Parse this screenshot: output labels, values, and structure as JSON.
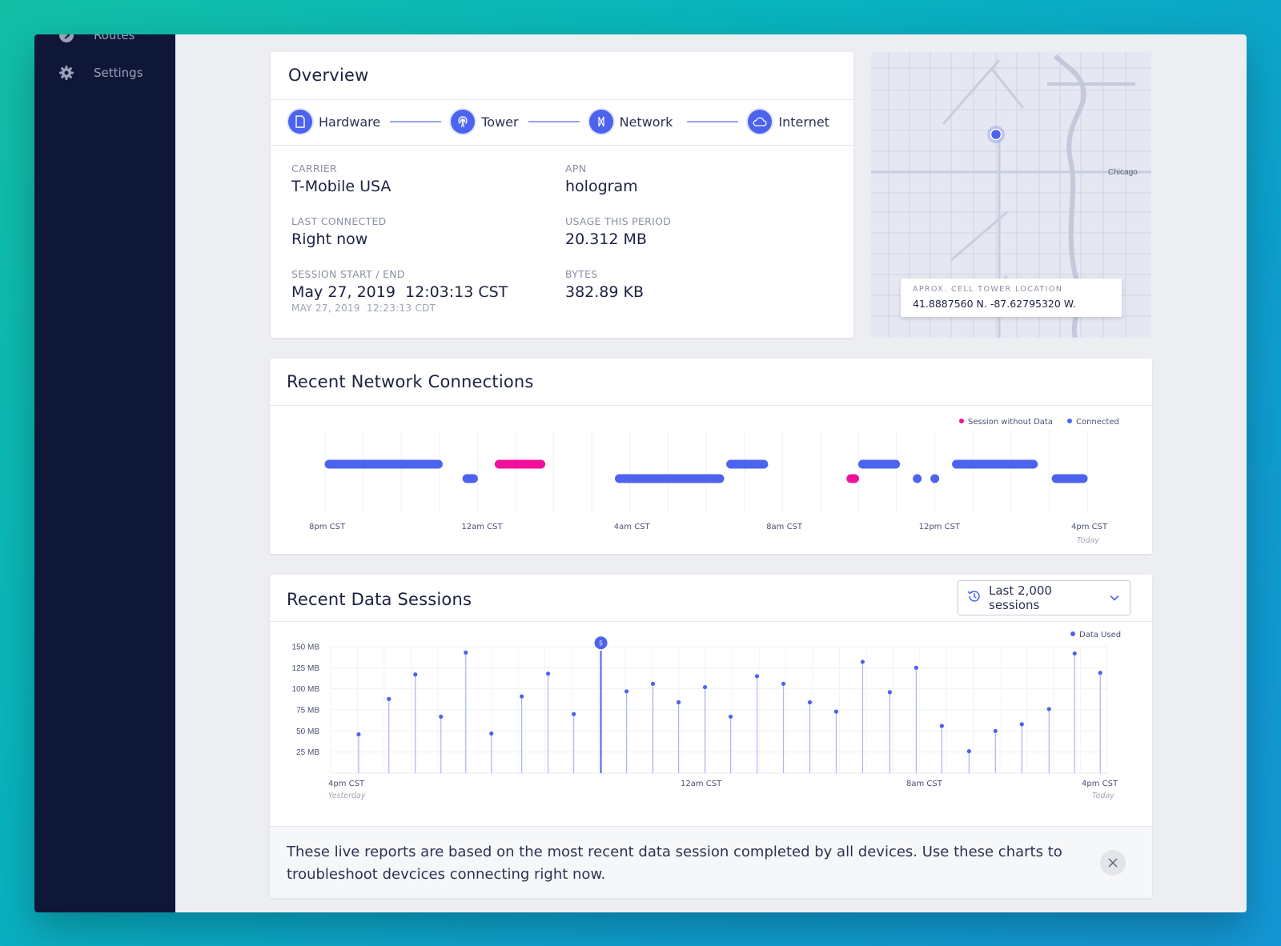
{
  "sidebar": {
    "items": [
      {
        "label": "Routes",
        "icon": "routes-icon"
      },
      {
        "label": "Settings",
        "icon": "gear-icon"
      }
    ]
  },
  "overview": {
    "title": "Overview",
    "steps": [
      {
        "label": "Hardware",
        "icon": "sim-card-icon"
      },
      {
        "label": "Tower",
        "icon": "tower-icon"
      },
      {
        "label": "Network",
        "icon": "network-icon"
      },
      {
        "label": "Internet",
        "icon": "cloud-icon"
      }
    ],
    "fields": {
      "carrier": {
        "label": "CARRIER",
        "value": "T-Mobile USA"
      },
      "apn": {
        "label": "APN",
        "value": "hologram"
      },
      "last_connected": {
        "label": "LAST CONNECTED",
        "value": "Right now"
      },
      "usage": {
        "label": "USAGE THIS PERIOD",
        "value": "20.312 MB"
      },
      "session": {
        "label": "SESSION START / END",
        "value": "May 27, 2019  12:03:13 CST",
        "sub": "MAY 27, 2019  12:23:13 CDT"
      },
      "bytes": {
        "label": "BYTES",
        "value": "382.89 KB"
      }
    }
  },
  "map": {
    "city_label": "Chicago",
    "tooltip_label": "APROX. CELL TOWER LOCATION",
    "tooltip_value": "41.8887560 N. -87.62795320 W."
  },
  "connections": {
    "title": "Recent Network Connections",
    "legend": {
      "session_without_data": "Session without Data",
      "connected": "Connected"
    },
    "x_labels": [
      "8pm CST",
      "12am CST",
      "4am CST",
      "8am CST",
      "12pm CST",
      "4pm CST"
    ],
    "x_sub": "Today",
    "colors": {
      "connected": "#4c63ee",
      "no_data": "#f0109c"
    }
  },
  "sessions": {
    "title": "Recent Data Sessions",
    "dropdown_label": "Last 2,000 sessions",
    "legend": "Data Used",
    "highlight_badge": "5",
    "x_labels": [
      "4pm CST",
      "12am CST",
      "8am CST",
      "4pm CST"
    ],
    "x_sub_left": "Yesterday",
    "x_sub_right": "Today",
    "info_text": "These live reports are based on the most recent data session completed by all devices. Use these charts to troubleshoot devcices connecting right now."
  },
  "chart_data": [
    {
      "type": "timeline",
      "title": "Recent Network Connections",
      "x_range": [
        "8pm CST",
        "4pm CST"
      ],
      "rows": 2,
      "segments": [
        {
          "start_h": 0.0,
          "end_h": 4.0,
          "row": 0,
          "status": "Connected"
        },
        {
          "start_h": 4.7,
          "end_h": 5.2,
          "row": 1,
          "status": "Connected"
        },
        {
          "start_h": 5.8,
          "end_h": 7.5,
          "row": 0,
          "status": "Session without Data"
        },
        {
          "start_h": 9.9,
          "end_h": 13.6,
          "row": 1,
          "status": "Connected"
        },
        {
          "start_h": 13.7,
          "end_h": 15.1,
          "row": 0,
          "status": "Connected"
        },
        {
          "start_h": 17.8,
          "end_h": 18.2,
          "row": 1,
          "status": "Session without Data"
        },
        {
          "start_h": 18.2,
          "end_h": 19.6,
          "row": 0,
          "status": "Connected"
        },
        {
          "start_h": 20.1,
          "end_h": 20.3,
          "row": 1,
          "status": "Connected"
        },
        {
          "start_h": 20.7,
          "end_h": 20.9,
          "row": 1,
          "status": "Connected"
        },
        {
          "start_h": 21.4,
          "end_h": 24.3,
          "row": 0,
          "status": "Connected"
        },
        {
          "start_h": 24.8,
          "end_h": 26.0,
          "row": 1,
          "status": "Connected"
        }
      ],
      "legend": [
        "Session without Data",
        "Connected"
      ]
    },
    {
      "type": "scatter",
      "title": "Recent Data Sessions",
      "ylabel_unit": "MB",
      "ylim": [
        0,
        150
      ],
      "y_ticks": [
        25,
        50,
        75,
        100,
        125,
        150
      ],
      "legend": [
        "Data Used"
      ],
      "series": [
        {
          "name": "Data Used",
          "x": [
            0.036,
            0.075,
            0.109,
            0.142,
            0.174,
            0.207,
            0.246,
            0.28,
            0.313,
            0.348,
            0.381,
            0.415,
            0.448,
            0.482,
            0.515,
            0.549,
            0.583,
            0.617,
            0.651,
            0.685,
            0.72,
            0.754,
            0.787,
            0.822,
            0.856,
            0.89,
            0.925,
            0.958,
            0.991
          ],
          "values": [
            46,
            88,
            117,
            67,
            143,
            47,
            91,
            118,
            70,
            145,
            97,
            106,
            84,
            102,
            67,
            115,
            106,
            84,
            73,
            132,
            96,
            125,
            56,
            26,
            50,
            58,
            76,
            142,
            119
          ]
        }
      ],
      "highlight_index": 9
    }
  ]
}
